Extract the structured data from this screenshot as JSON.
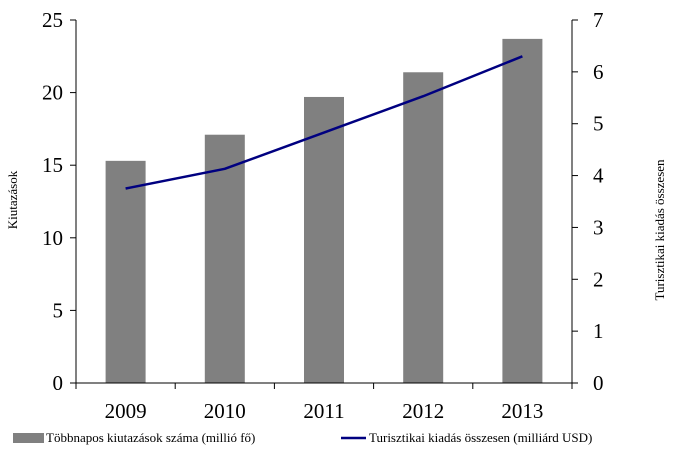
{
  "chart_data": {
    "type": "bar",
    "categories": [
      "2009",
      "2010",
      "2011",
      "2012",
      "2013"
    ],
    "series": [
      {
        "name": "Többnapos kiutazások száma (millió fő)",
        "kind": "bar",
        "axis": "left",
        "color": "#808080",
        "values": [
          15.3,
          17.1,
          19.7,
          21.4,
          23.7
        ]
      },
      {
        "name": "Turisztikai kiadás összesen (milliárd USD)",
        "kind": "line",
        "axis": "right",
        "color": "#000080",
        "values": [
          3.75,
          4.13,
          4.83,
          5.53,
          6.3
        ]
      }
    ],
    "ylabel": "Kiutazások",
    "y2label": "Turisztikai kiadás összesen",
    "ylim": [
      0,
      25
    ],
    "y2lim": [
      0,
      7
    ],
    "yticks": [
      "0",
      "5",
      "10",
      "15",
      "20",
      "25"
    ],
    "y2ticks": [
      "0",
      "1",
      "2",
      "3",
      "4",
      "5",
      "6",
      "7"
    ],
    "grid": false,
    "legend_position": "bottom"
  }
}
